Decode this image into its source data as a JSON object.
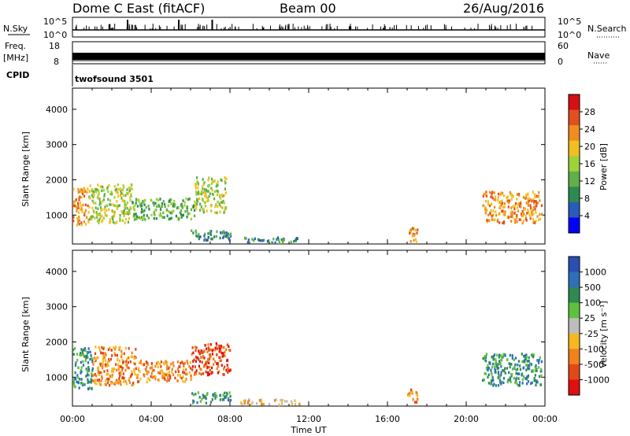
{
  "header": {
    "station": "Dome C East (fitACF)",
    "beam": "Beam 00",
    "date": "26/Aug/2016"
  },
  "side_labels": {
    "nsky": "N.Sky",
    "freq": "Freq.",
    "freq_unit": "[MHz]",
    "cpid": "CPID",
    "nsearch": "N.Search",
    "nave": "Nave"
  },
  "top_axes": {
    "nsky_ticks": [
      "10^5",
      "10^0"
    ],
    "nsearch_ticks": [
      "10^5",
      "10^0"
    ],
    "freq_ticks": [
      "18",
      "8"
    ],
    "nave_ticks": [
      "60",
      "0"
    ]
  },
  "cpid_text": "twofsound 3501",
  "x_axis": {
    "label": "Time UT",
    "ticks": [
      "00:00",
      "04:00",
      "08:00",
      "12:00",
      "16:00",
      "20:00",
      "00:00"
    ]
  },
  "colors": {
    "power_scale": [
      "#0000ff",
      "#2a5bb8",
      "#2e8a52",
      "#5fb04a",
      "#9fd23a",
      "#f0c020",
      "#f08c20",
      "#e05020",
      "#d41010"
    ],
    "velocity_scale": [
      "#2a4fb0",
      "#2d6fb8",
      "#2e8a52",
      "#5fc040",
      "#bdbdbd",
      "#f5b820",
      "#f08020",
      "#e04818",
      "#e01010"
    ]
  },
  "chart_data": [
    {
      "type": "heatmap",
      "panel": "power",
      "ylabel": "Slant Range [km]",
      "yticks": [
        1000,
        2000,
        3000,
        4000
      ],
      "ylim": [
        180,
        4600
      ],
      "xlim_hours": [
        0,
        24
      ],
      "colorbar": {
        "label": "Power [dB]",
        "ticks": [
          "4",
          "8",
          "12",
          "16",
          "20",
          "24",
          "28"
        ]
      },
      "regions": [
        {
          "t0": 0.0,
          "t1": 0.8,
          "r0": 700,
          "r1": 1800,
          "level": 6
        },
        {
          "t0": 0.8,
          "t1": 3.0,
          "r0": 800,
          "r1": 1900,
          "level": 4
        },
        {
          "t0": 3.0,
          "t1": 6.2,
          "r0": 900,
          "r1": 1500,
          "level": 3
        },
        {
          "t0": 6.2,
          "t1": 7.8,
          "r0": 1100,
          "r1": 2100,
          "level": 4
        },
        {
          "t0": 6.0,
          "t1": 8.0,
          "r0": 300,
          "r1": 600,
          "level": 2
        },
        {
          "t0": 8.5,
          "t1": 11.5,
          "r0": 250,
          "r1": 400,
          "level": 2
        },
        {
          "t0": 17.0,
          "t1": 17.5,
          "r0": 250,
          "r1": 700,
          "level": 6
        },
        {
          "t0": 20.8,
          "t1": 23.8,
          "r0": 800,
          "r1": 1700,
          "level": 6
        }
      ]
    },
    {
      "type": "heatmap",
      "panel": "velocity",
      "ylabel": "Slant Range [km]",
      "yticks": [
        1000,
        2000,
        3000,
        4000
      ],
      "ylim": [
        180,
        4600
      ],
      "xlim_hours": [
        0,
        24
      ],
      "colorbar": {
        "label": "Velocity [m s⁻¹]",
        "ticks": [
          "1000",
          "500",
          "100",
          "25",
          "-25",
          "-100",
          "-500",
          "-1000"
        ]
      },
      "regions": [
        {
          "t0": 0.0,
          "t1": 1.0,
          "r0": 700,
          "r1": 1900,
          "level": 2
        },
        {
          "t0": 1.0,
          "t1": 3.2,
          "r0": 800,
          "r1": 1900,
          "level": 6
        },
        {
          "t0": 3.2,
          "t1": 6.0,
          "r0": 900,
          "r1": 1500,
          "level": 6
        },
        {
          "t0": 6.0,
          "t1": 8.0,
          "r0": 1100,
          "r1": 2000,
          "level": 7
        },
        {
          "t0": 6.0,
          "t1": 8.0,
          "r0": 300,
          "r1": 600,
          "level": 2
        },
        {
          "t0": 8.5,
          "t1": 11.5,
          "r0": 250,
          "r1": 400,
          "level": 5
        },
        {
          "t0": 17.0,
          "t1": 17.5,
          "r0": 250,
          "r1": 700,
          "level": 6
        },
        {
          "t0": 20.8,
          "t1": 23.8,
          "r0": 800,
          "r1": 1700,
          "level": 2
        }
      ]
    }
  ]
}
